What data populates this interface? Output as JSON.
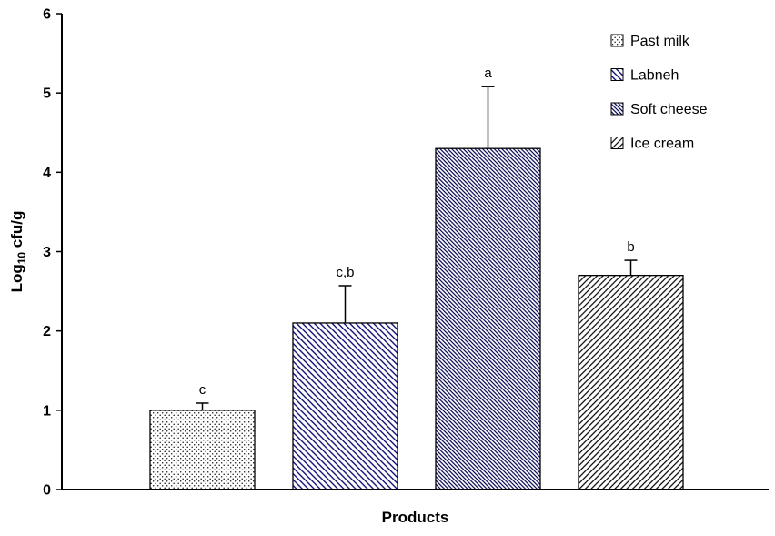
{
  "chart_data": {
    "type": "bar",
    "categories": [
      "Past milk",
      "Labneh",
      "Soft cheese",
      "Ice cream"
    ],
    "values": [
      1.0,
      2.1,
      4.3,
      2.7
    ],
    "errors": [
      0.09,
      0.47,
      0.78,
      0.19
    ],
    "sig_letters": [
      "c",
      "c,b",
      "a",
      "b"
    ],
    "title": "",
    "xlabel": "Products",
    "ylabel": "Log10 cfu/g",
    "ylabel_parts": {
      "prefix": "Log",
      "sub": "10",
      "suffix": " cfu/g"
    },
    "ylim": [
      0,
      6
    ],
    "ytick_step": 1,
    "yticks": [
      0,
      1,
      2,
      3,
      4,
      5,
      6
    ],
    "grid": false,
    "legend_position": "top-right",
    "legend": {
      "items": [
        {
          "label": "Past milk",
          "pattern": "pat-dots"
        },
        {
          "label": "Labneh",
          "pattern": "pat-labneh"
        },
        {
          "label": "Soft cheese",
          "pattern": "pat-soft"
        },
        {
          "label": "Ice cream",
          "pattern": "pat-ice"
        }
      ]
    },
    "bar_patterns": [
      "pat-dots",
      "pat-labneh",
      "pat-soft",
      "pat-ice"
    ],
    "colors": {
      "axis": "#000000",
      "bar_outline": "#000000",
      "error_bar": "#000000",
      "hatch_navy": "#00006b",
      "hatch_dense_navy": "#00004d",
      "hatch_black": "#000000",
      "dot_black": "#1a1a1a"
    }
  }
}
